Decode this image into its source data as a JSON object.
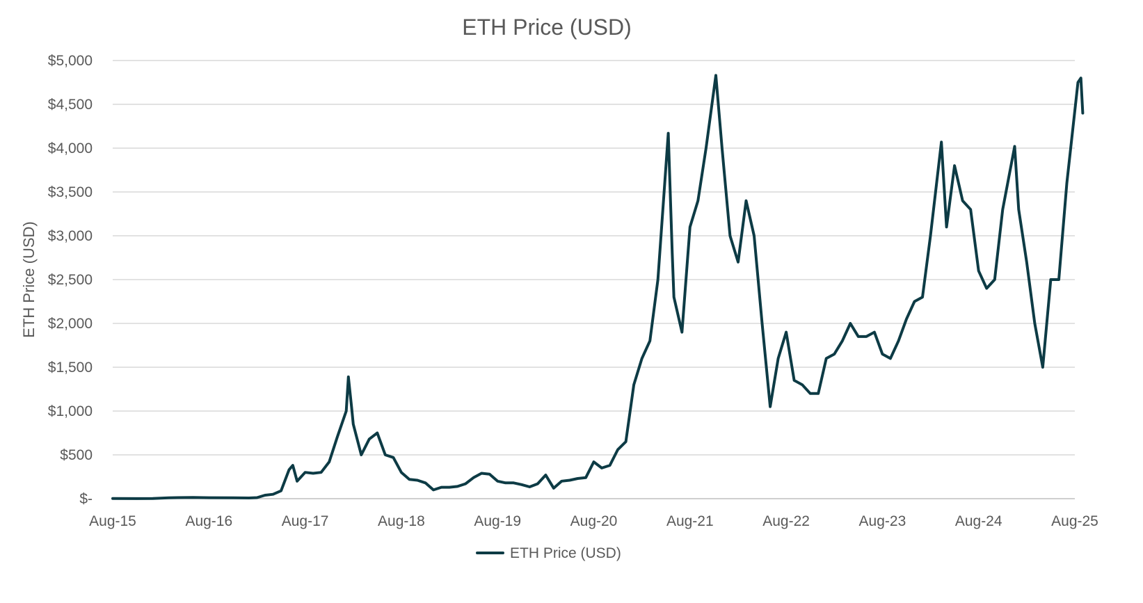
{
  "chart_data": {
    "type": "line",
    "title": "ETH Price (USD)",
    "xlabel": "",
    "ylabel": "ETH Price (USD)",
    "ylim": [
      0,
      5000
    ],
    "y_ticks": [
      {
        "value": 0,
        "label": "$-"
      },
      {
        "value": 500,
        "label": "$500"
      },
      {
        "value": 1000,
        "label": "$1,000"
      },
      {
        "value": 1500,
        "label": "$1,500"
      },
      {
        "value": 2000,
        "label": "$2,000"
      },
      {
        "value": 2500,
        "label": "$2,500"
      },
      {
        "value": 3000,
        "label": "$3,000"
      },
      {
        "value": 3500,
        "label": "$3,500"
      },
      {
        "value": 4000,
        "label": "$4,000"
      },
      {
        "value": 4500,
        "label": "$4,500"
      },
      {
        "value": 5000,
        "label": "$5,000"
      }
    ],
    "x_ticks": [
      "Aug-15",
      "Aug-16",
      "Aug-17",
      "Aug-18",
      "Aug-19",
      "Aug-20",
      "Aug-21",
      "Aug-22",
      "Aug-23",
      "Aug-24",
      "Aug-25"
    ],
    "grid": true,
    "legend": "bottom",
    "series_color": "#0d3b45",
    "series": [
      {
        "name": "ETH Price (USD)",
        "points": [
          [
            "2015-08",
            2
          ],
          [
            "2015-11",
            1
          ],
          [
            "2016-01",
            2
          ],
          [
            "2016-03",
            10
          ],
          [
            "2016-06",
            14
          ],
          [
            "2016-08",
            11
          ],
          [
            "2016-11",
            10
          ],
          [
            "2017-01",
            8
          ],
          [
            "2017-02",
            12
          ],
          [
            "2017-03",
            40
          ],
          [
            "2017-04",
            50
          ],
          [
            "2017-05",
            90
          ],
          [
            "2017-06",
            330
          ],
          [
            "2017-06-15",
            380
          ],
          [
            "2017-07",
            200
          ],
          [
            "2017-08",
            300
          ],
          [
            "2017-09",
            290
          ],
          [
            "2017-10",
            300
          ],
          [
            "2017-11",
            420
          ],
          [
            "2017-12",
            700
          ],
          [
            "2018-01-05",
            1000
          ],
          [
            "2018-01-13",
            1390
          ],
          [
            "2018-01-25",
            1050
          ],
          [
            "2018-02",
            850
          ],
          [
            "2018-03",
            500
          ],
          [
            "2018-04",
            680
          ],
          [
            "2018-05",
            750
          ],
          [
            "2018-06",
            500
          ],
          [
            "2018-07",
            470
          ],
          [
            "2018-08",
            300
          ],
          [
            "2018-09",
            220
          ],
          [
            "2018-10",
            210
          ],
          [
            "2018-11",
            180
          ],
          [
            "2018-12",
            100
          ],
          [
            "2019-01",
            130
          ],
          [
            "2019-02",
            130
          ],
          [
            "2019-03",
            140
          ],
          [
            "2019-04",
            170
          ],
          [
            "2019-05",
            240
          ],
          [
            "2019-06",
            290
          ],
          [
            "2019-07",
            280
          ],
          [
            "2019-08",
            200
          ],
          [
            "2019-09",
            180
          ],
          [
            "2019-10",
            180
          ],
          [
            "2019-11",
            160
          ],
          [
            "2019-12",
            135
          ],
          [
            "2020-01",
            170
          ],
          [
            "2020-02",
            270
          ],
          [
            "2020-03",
            120
          ],
          [
            "2020-04",
            200
          ],
          [
            "2020-05",
            210
          ],
          [
            "2020-06",
            230
          ],
          [
            "2020-07",
            240
          ],
          [
            "2020-08",
            420
          ],
          [
            "2020-09",
            350
          ],
          [
            "2020-10",
            380
          ],
          [
            "2020-11",
            560
          ],
          [
            "2020-12",
            650
          ],
          [
            "2021-01",
            1300
          ],
          [
            "2021-02",
            1600
          ],
          [
            "2021-03",
            1800
          ],
          [
            "2021-04",
            2500
          ],
          [
            "2021-05-10",
            4170
          ],
          [
            "2021-05-25",
            2800
          ],
          [
            "2021-06",
            2300
          ],
          [
            "2021-07",
            1900
          ],
          [
            "2021-08",
            3100
          ],
          [
            "2021-09",
            3400
          ],
          [
            "2021-10",
            4000
          ],
          [
            "2021-11-08",
            4830
          ],
          [
            "2021-12",
            4000
          ],
          [
            "2022-01",
            3000
          ],
          [
            "2022-02",
            2700
          ],
          [
            "2022-03",
            3400
          ],
          [
            "2022-04",
            3000
          ],
          [
            "2022-05",
            2000
          ],
          [
            "2022-06",
            1050
          ],
          [
            "2022-07",
            1600
          ],
          [
            "2022-08",
            1900
          ],
          [
            "2022-09",
            1350
          ],
          [
            "2022-10",
            1300
          ],
          [
            "2022-11",
            1200
          ],
          [
            "2022-12",
            1200
          ],
          [
            "2023-01",
            1600
          ],
          [
            "2023-02",
            1650
          ],
          [
            "2023-03",
            1800
          ],
          [
            "2023-04",
            2000
          ],
          [
            "2023-05",
            1850
          ],
          [
            "2023-06",
            1850
          ],
          [
            "2023-07",
            1900
          ],
          [
            "2023-08",
            1650
          ],
          [
            "2023-09",
            1600
          ],
          [
            "2023-10",
            1800
          ],
          [
            "2023-11",
            2050
          ],
          [
            "2023-12",
            2250
          ],
          [
            "2024-01",
            2300
          ],
          [
            "2024-02",
            3000
          ],
          [
            "2024-03-12",
            4070
          ],
          [
            "2024-04",
            3100
          ],
          [
            "2024-05",
            3800
          ],
          [
            "2024-06",
            3400
          ],
          [
            "2024-07",
            3300
          ],
          [
            "2024-08",
            2600
          ],
          [
            "2024-09",
            2400
          ],
          [
            "2024-10",
            2500
          ],
          [
            "2024-11",
            3300
          ],
          [
            "2024-12-16",
            4020
          ],
          [
            "2025-01",
            3300
          ],
          [
            "2025-02",
            2700
          ],
          [
            "2025-03",
            2000
          ],
          [
            "2025-04",
            1500
          ],
          [
            "2025-05",
            2500
          ],
          [
            "2025-06",
            2500
          ],
          [
            "2025-07",
            3600
          ],
          [
            "2025-08-13",
            4750
          ],
          [
            "2025-08-24",
            4800
          ],
          [
            "2025-08-31",
            4400
          ]
        ]
      }
    ]
  }
}
